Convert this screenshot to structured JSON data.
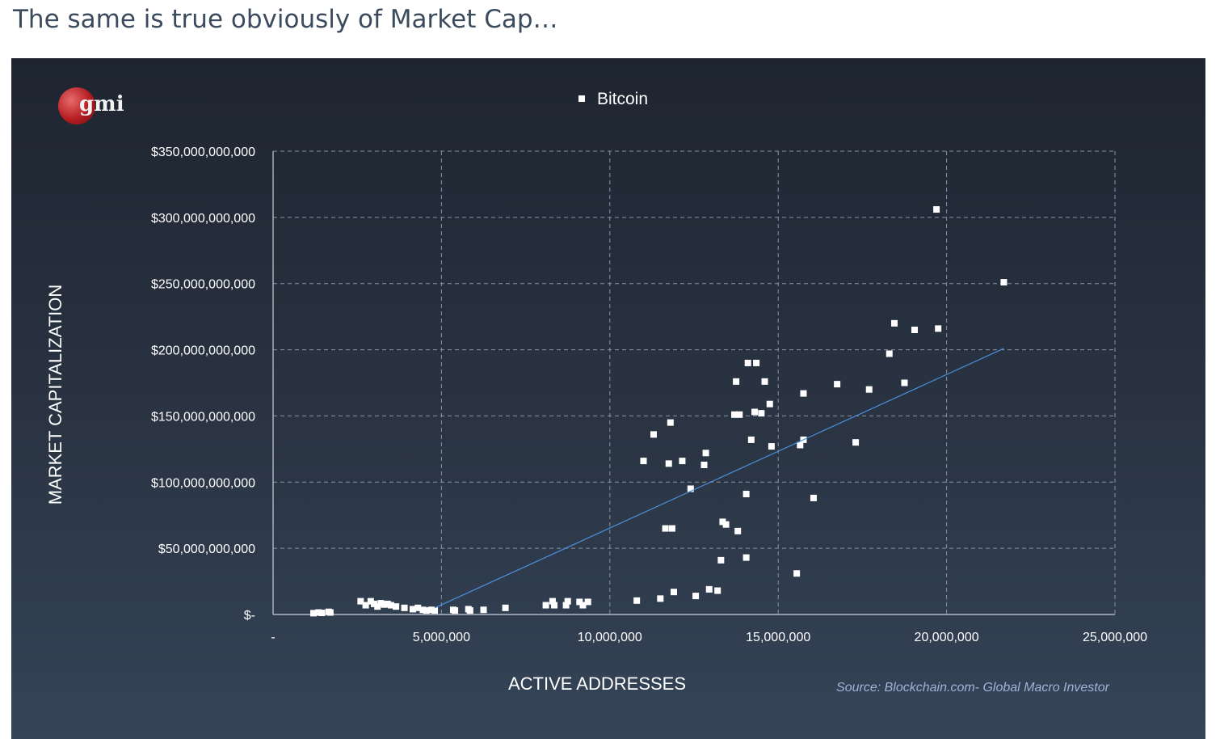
{
  "page": {
    "heading": "The same is true obviously of Market Cap…"
  },
  "logo": {
    "text": "gmi"
  },
  "colors": {
    "panel_top": "#1e2530",
    "panel_bottom": "#354458",
    "points": "#ffffff",
    "trendline": "#4a90d9",
    "grid": "#8a94a3",
    "source": "#9fb3d9"
  },
  "chart_data": {
    "type": "scatter",
    "legend": [
      "Bitcoin"
    ],
    "legend_position": "top-center",
    "xlabel": "ACTIVE ADDRESSES",
    "ylabel": "MARKET CAPITALIZATION",
    "source": "Source: Blockchain.com- Global Macro Investor",
    "xlim": [
      0,
      25000000
    ],
    "ylim": [
      0,
      350000000000
    ],
    "grid": true,
    "x_ticks": [
      0,
      5000000,
      10000000,
      15000000,
      20000000,
      25000000
    ],
    "x_tick_labels": [
      "-",
      "5,000,000",
      "10,000,000",
      "15,000,000",
      "20,000,000",
      "25,000,000"
    ],
    "y_ticks": [
      0,
      50000000000,
      100000000000,
      150000000000,
      200000000000,
      250000000000,
      300000000000,
      350000000000
    ],
    "y_tick_labels": [
      "$-",
      "$50,000,000,000",
      "$100,000,000,000",
      "$150,000,000,000",
      "$200,000,000,000",
      "$250,000,000,000",
      "$300,000,000,000",
      "$350,000,000,000"
    ],
    "series": [
      {
        "name": "Bitcoin",
        "points": [
          [
            1200000,
            1000000000
          ],
          [
            1350000,
            1500000000
          ],
          [
            1450000,
            1200000000
          ],
          [
            1650000,
            2000000000
          ],
          [
            1700000,
            1500000000
          ],
          [
            2600000,
            10000000000
          ],
          [
            2750000,
            7000000000
          ],
          [
            2900000,
            10000000000
          ],
          [
            3000000,
            8000000000
          ],
          [
            3100000,
            6000000000
          ],
          [
            3200000,
            8500000000
          ],
          [
            3300000,
            7500000000
          ],
          [
            3400000,
            8000000000
          ],
          [
            3500000,
            7000000000
          ],
          [
            3650000,
            6000000000
          ],
          [
            3900000,
            5000000000
          ],
          [
            4150000,
            4000000000
          ],
          [
            4300000,
            5000000000
          ],
          [
            4450000,
            3500000000
          ],
          [
            4550000,
            3000000000
          ],
          [
            4700000,
            3500000000
          ],
          [
            4800000,
            3000000000
          ],
          [
            5350000,
            3500000000
          ],
          [
            5400000,
            3000000000
          ],
          [
            5800000,
            4000000000
          ],
          [
            5850000,
            3000000000
          ],
          [
            6250000,
            3500000000
          ],
          [
            6900000,
            5000000000
          ],
          [
            8100000,
            7000000000
          ],
          [
            8300000,
            10000000000
          ],
          [
            8350000,
            7000000000
          ],
          [
            8700000,
            7000000000
          ],
          [
            8750000,
            10000000000
          ],
          [
            9100000,
            9500000000
          ],
          [
            9200000,
            7000000000
          ],
          [
            9350000,
            9500000000
          ],
          [
            10800000,
            10500000000
          ],
          [
            11000000,
            116000000000
          ],
          [
            11300000,
            136000000000
          ],
          [
            11500000,
            12000000000
          ],
          [
            11650000,
            65000000000
          ],
          [
            11750000,
            114000000000
          ],
          [
            11800000,
            145000000000
          ],
          [
            11850000,
            65000000000
          ],
          [
            11900000,
            17000000000
          ],
          [
            12150000,
            116000000000
          ],
          [
            12400000,
            95000000000
          ],
          [
            12550000,
            14000000000
          ],
          [
            12800000,
            113000000000
          ],
          [
            12850000,
            122000000000
          ],
          [
            12950000,
            19000000000
          ],
          [
            13200000,
            18000000000
          ],
          [
            13300000,
            41000000000
          ],
          [
            13350000,
            70000000000
          ],
          [
            13450000,
            68000000000
          ],
          [
            13700000,
            151000000000
          ],
          [
            13750000,
            176000000000
          ],
          [
            13800000,
            63000000000
          ],
          [
            13850000,
            151000000000
          ],
          [
            14050000,
            43000000000
          ],
          [
            14050000,
            91000000000
          ],
          [
            14100000,
            190000000000
          ],
          [
            14200000,
            132000000000
          ],
          [
            14300000,
            153000000000
          ],
          [
            14350000,
            190000000000
          ],
          [
            14500000,
            152000000000
          ],
          [
            14600000,
            176000000000
          ],
          [
            14750000,
            159000000000
          ],
          [
            14800000,
            127000000000
          ],
          [
            15550000,
            31000000000
          ],
          [
            15650000,
            128000000000
          ],
          [
            15750000,
            167000000000
          ],
          [
            15750000,
            132000000000
          ],
          [
            16050000,
            88000000000
          ],
          [
            16750000,
            174000000000
          ],
          [
            17300000,
            130000000000
          ],
          [
            17700000,
            170000000000
          ],
          [
            18300000,
            197000000000
          ],
          [
            18450000,
            220000000000
          ],
          [
            18750000,
            175000000000
          ],
          [
            19050000,
            215000000000
          ],
          [
            19700000,
            306000000000
          ],
          [
            19750000,
            216000000000
          ],
          [
            21700000,
            251000000000
          ]
        ]
      }
    ],
    "trendline": {
      "x": [
        4800000,
        21700000
      ],
      "y": [
        5000000000,
        201000000000
      ]
    }
  }
}
